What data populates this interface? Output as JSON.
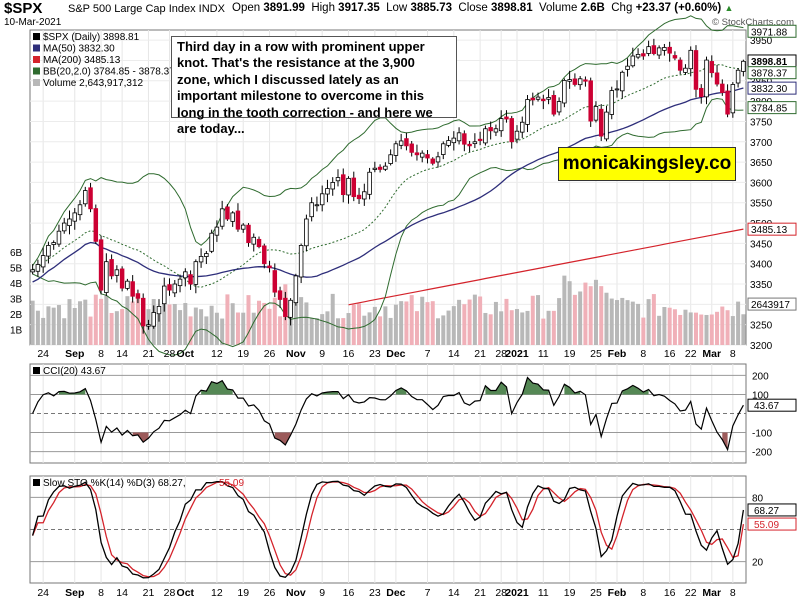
{
  "header": {
    "symbol": "$SPX",
    "name": "S&P 500 Large Cap Index INDX",
    "date": "10-Mar-2021",
    "open_label": "Open",
    "open": "3891.99",
    "high_label": "High",
    "high": "3917.35",
    "low_label": "Low",
    "low": "3885.73",
    "close_label": "Close",
    "close": "3898.81",
    "volume_label": "Volume",
    "volume": "2.6B",
    "chg_label": "Chg",
    "chg": "+23.37 (+0.60%)",
    "chg_arrow": "▲",
    "credit": "© StockCharts.com"
  },
  "annotation": "Third day in a row with prominent upper knot. That's the resistance at the 3,900 zone, which I discussed lately as an important milestone to overcome in this long in the tooth correction - and here we are today...",
  "brand": "monicakingsley.co",
  "colors": {
    "up": "#ffffff",
    "down": "#cc0033",
    "wick": "#000000",
    "ma50": "#2e2e7a",
    "ma200": "#d4232b",
    "bb": "#2f6b2f",
    "vol_up": "#b8b8b8",
    "vol_down": "#f0b0b8",
    "cci_fill": "#558855",
    "cci_neg": "#9c5a5a",
    "sto_k": "#000000",
    "sto_d": "#d4232b",
    "label_bg_blue": "#2e2e7a",
    "label_bg_red": "#d4232b",
    "label_bg_green": "#2f6b2f"
  },
  "legend": {
    "price": "$SPX (Daily) 3898.81",
    "ma50": "MA(50) 3832.30",
    "ma200": "MA(200) 3485.13",
    "bb": "BB(20,2.0) 3784.85 - 3878.37",
    "volume": "Volume 2,643,917,312",
    "cci": "CCI(20) 43.67",
    "sto_label": "Slow STO %K(14) %D(3) 68.27,",
    "sto_d": "55.09"
  },
  "chart_data": {
    "type": "candlestick",
    "title": "$SPX S&P 500 Large Cap Index INDX (Daily)",
    "price_ylim": [
      3200,
      3975
    ],
    "price_ticks": [
      "3950",
      "3900",
      "3850",
      "3800",
      "3750",
      "3700",
      "3650",
      "3600",
      "3550",
      "3500",
      "3450",
      "3400",
      "3350",
      "3300",
      "3250",
      "3200"
    ],
    "volume_ticks": [
      "6B",
      "5B",
      "4B",
      "3B",
      "2B",
      "1B"
    ],
    "x_labels": [
      "24",
      "Sep",
      "8",
      "14",
      "21",
      "28",
      "Oct",
      "12",
      "19",
      "26",
      "Nov",
      "9",
      "16",
      "23",
      "Dec",
      "7",
      "14",
      "21",
      "28",
      "2021",
      "11",
      "19",
      "25",
      "Feb",
      "8",
      "16",
      "22",
      "Mar",
      "8"
    ],
    "x_label_bars": [
      2,
      8,
      13,
      17,
      22,
      26,
      29,
      35,
      40,
      45,
      50,
      55,
      60,
      65,
      69,
      75,
      80,
      85,
      89,
      92,
      97,
      102,
      107,
      111,
      116,
      121,
      125,
      129,
      133
    ],
    "last_value_labels": [
      {
        "text": "3971.88",
        "series": "bb_upper"
      },
      {
        "text": "3898.81",
        "series": "close"
      },
      {
        "text": "3878.37",
        "series": "bb_mid"
      },
      {
        "text": "3832.30",
        "series": "ma50"
      },
      {
        "text": "3784.85",
        "series": "bb_lower"
      },
      {
        "text": "3485.13",
        "series": "ma200"
      },
      {
        "text": "2643917",
        "series": "volume"
      }
    ],
    "closes": [
      3385,
      3398,
      3420,
      3445,
      3452,
      3480,
      3500,
      3510,
      3525,
      3545,
      3580,
      3535,
      3455,
      3335,
      3405,
      3370,
      3385,
      3340,
      3357,
      3320,
      3315,
      3247,
      3250,
      3280,
      3295,
      3345,
      3335,
      3350,
      3362,
      3380,
      3350,
      3405,
      3418,
      3425,
      3475,
      3490,
      3535,
      3510,
      3525,
      3485,
      3495,
      3452,
      3465,
      3442,
      3400,
      3390,
      3330,
      3312,
      3270,
      3310,
      3370,
      3445,
      3510,
      3550,
      3545,
      3572,
      3585,
      3600,
      3612,
      3570,
      3610,
      3565,
      3560,
      3577,
      3625,
      3635,
      3632,
      3640,
      3668,
      3695,
      3702,
      3690,
      3674,
      3668,
      3672,
      3660,
      3647,
      3663,
      3695,
      3703,
      3709,
      3722,
      3694,
      3690,
      3700,
      3703,
      3732,
      3727,
      3732,
      3757,
      3756,
      3700,
      3726,
      3748,
      3804,
      3803,
      3810,
      3801,
      3809,
      3768,
      3799,
      3851,
      3853,
      3841,
      3855,
      3849,
      3751,
      3787,
      3714,
      3773,
      3826,
      3830,
      3871,
      3886,
      3911,
      3915,
      3911,
      3934,
      3917,
      3931,
      3932,
      3918,
      3906,
      3876,
      3881,
      3925,
      3829,
      3811,
      3901,
      3870,
      3842,
      3821,
      3768,
      3841,
      3876,
      3898
    ],
    "ma50_last": 3832.3,
    "ma200_last": 3485.13,
    "bb_last": {
      "upper": 3971.88,
      "mid": 3878.37,
      "lower": 3784.85
    },
    "volume_last": 2643917312,
    "cci": {
      "label": "CCI(20)",
      "last": 43.67,
      "ticks": [
        "200",
        "100",
        "-100",
        "-200"
      ],
      "ylim": [
        -260,
        260
      ]
    },
    "stochastic": {
      "label": "Slow STO %K(14) %D(3)",
      "k_last": 68.27,
      "d_last": 55.09,
      "ticks": [
        "80",
        "20"
      ],
      "ylim": [
        0,
        100
      ]
    }
  }
}
